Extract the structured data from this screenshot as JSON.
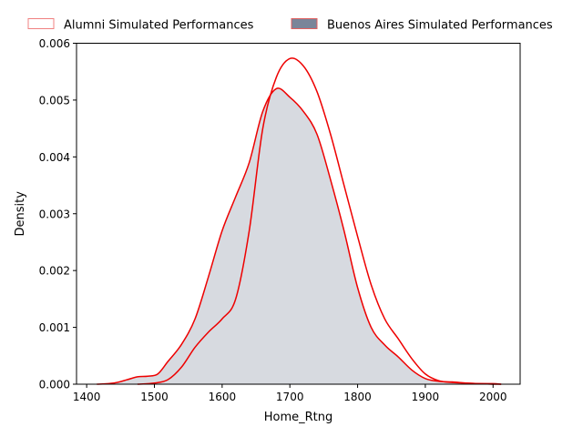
{
  "chart_data": {
    "type": "area",
    "xlabel": "Home_Rtng",
    "ylabel": "Density",
    "xlim": [
      1385,
      2040
    ],
    "ylim": [
      0,
      0.006
    ],
    "xticks": [
      1400,
      1500,
      1600,
      1700,
      1800,
      1900,
      2000
    ],
    "xtick_labels": [
      "1400",
      "1500",
      "1600",
      "1700",
      "1800",
      "1900",
      "2000"
    ],
    "yticks": [
      0,
      0.001,
      0.002,
      0.003,
      0.004,
      0.005,
      0.006
    ],
    "ytick_labels": [
      "0.000",
      "0.001",
      "0.002",
      "0.003",
      "0.004",
      "0.005",
      "0.006"
    ],
    "grid": false,
    "legend_position": "top, outside plot",
    "line_color": "#ee0000",
    "series": [
      {
        "name": "Alumni Simulated Performances",
        "legend_style": "outline",
        "fill_color": "#ffffff",
        "edge_color": "#f08080",
        "x": [
          1475,
          1500,
          1520,
          1540,
          1560,
          1580,
          1600,
          1620,
          1640,
          1660,
          1680,
          1700,
          1720,
          1740,
          1760,
          1780,
          1800,
          1820,
          1840,
          1860,
          1880,
          1900,
          1920,
          1940,
          1960,
          1980,
          2000,
          2012
        ],
        "values": [
          0.0,
          2e-05,
          8e-05,
          0.0003,
          0.00065,
          0.00092,
          0.00115,
          0.0015,
          0.0027,
          0.0045,
          0.0054,
          0.00573,
          0.0056,
          0.00515,
          0.0044,
          0.0035,
          0.0026,
          0.00175,
          0.00115,
          0.0008,
          0.00045,
          0.00018,
          6e-05,
          3e-05,
          2e-05,
          1e-05,
          1e-05,
          0.0
        ]
      },
      {
        "name": "Buenos Aires Simulated Performances",
        "legend_style": "filled",
        "fill_color": "#7a8599",
        "edge_color": "#e06060",
        "x": [
          1415,
          1440,
          1460,
          1475,
          1490,
          1505,
          1520,
          1540,
          1560,
          1580,
          1600,
          1620,
          1640,
          1660,
          1680,
          1700,
          1720,
          1740,
          1760,
          1780,
          1800,
          1820,
          1840,
          1860,
          1880,
          1900,
          1920,
          1940,
          1960,
          1980,
          2000,
          2012
        ],
        "values": [
          0.0,
          2e-05,
          8e-05,
          0.00013,
          0.00014,
          0.00018,
          0.0004,
          0.0007,
          0.00115,
          0.0019,
          0.0027,
          0.0033,
          0.0039,
          0.0048,
          0.0052,
          0.00505,
          0.0048,
          0.0044,
          0.0036,
          0.0027,
          0.0017,
          0.001,
          0.00069,
          0.00048,
          0.00025,
          0.0001,
          5e-05,
          4e-05,
          2e-05,
          1e-05,
          0.0,
          0.0
        ]
      }
    ]
  }
}
